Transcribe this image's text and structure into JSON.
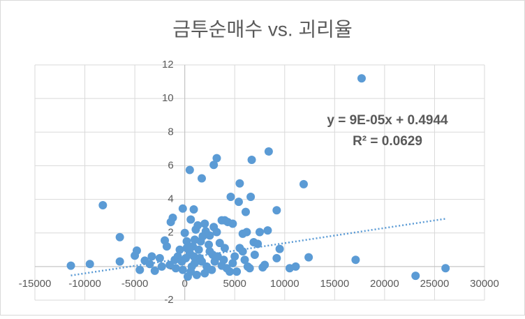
{
  "chart_data": {
    "type": "scatter",
    "title": "금투순매수 vs. 괴리율",
    "x": [
      17700,
      8400,
      3200,
      6700,
      2900,
      500,
      1700,
      5500,
      11900,
      4600,
      6600,
      5400,
      -8200,
      6100,
      9200,
      -200,
      900,
      -1200,
      600,
      4000,
      4300,
      3700,
      4800,
      -1400,
      2000,
      1300,
      2900,
      -6500,
      6200,
      5800,
      7500,
      8300,
      -2000,
      3200,
      2500,
      9500,
      6900,
      7300,
      12400,
      9200,
      17100,
      26100,
      23100,
      11100,
      10500,
      -11400,
      -9500,
      -6500,
      -4800,
      -4500,
      -5000,
      -3500,
      -4000,
      -3000,
      -2500,
      -1800,
      -1000,
      -500,
      0,
      200,
      500,
      800,
      1000,
      1500,
      2000,
      2500,
      3000,
      3500,
      4000,
      4500,
      5000,
      5500,
      6000,
      6500,
      7000,
      7800,
      8000,
      5200,
      3700,
      1200,
      -200,
      100,
      300,
      -1500,
      1800,
      2200,
      2700,
      700,
      -700,
      1400,
      3300,
      4200,
      600,
      -300,
      1700,
      2400,
      2800,
      -2300,
      4800,
      5800,
      6300,
      -3300,
      1100,
      1600,
      2100,
      200,
      900,
      -900,
      3900,
      1000
    ],
    "values": [
      11.2,
      6.85,
      6.45,
      6.35,
      6.05,
      5.75,
      5.25,
      4.95,
      4.9,
      4.15,
      4.15,
      3.85,
      3.65,
      3.25,
      3.35,
      3.45,
      3.4,
      2.9,
      2.8,
      2.75,
      2.65,
      2.75,
      2.55,
      2.65,
      2.55,
      2.45,
      2.35,
      1.75,
      2.05,
      1.95,
      2.05,
      2.15,
      1.55,
      2.05,
      1.85,
      1.05,
      1.45,
      1.35,
      0.55,
      0.5,
      0.4,
      -0.1,
      -0.55,
      0.0,
      -0.1,
      0.05,
      0.15,
      0.3,
      0.95,
      -0.2,
      0.65,
      0.15,
      0.35,
      -0.25,
      0.5,
      1.2,
      0.4,
      1.0,
      2.0,
      1.5,
      0.8,
      1.2,
      0.2,
      0.5,
      -0.4,
      0.9,
      0.3,
      1.4,
      1.1,
      -0.3,
      0.6,
      1.1,
      0.4,
      -0.1,
      0.7,
      -0.05,
      0.1,
      -0.3,
      0.05,
      -0.5,
      -0.2,
      0.5,
      -0.6,
      0.1,
      1.8,
      0.0,
      -0.2,
      0.0,
      0.6,
      1.0,
      0.6,
      -0.1,
      -0.3,
      0.3,
      0.3,
      1.3,
      0.7,
      0.0,
      0.2,
      0.9,
      0.0,
      0.6,
      2.2,
      1.5,
      2.1,
      1.1,
      0.6,
      -0.1,
      0.4,
      1.6
    ],
    "color": "#5b9bd5",
    "xlim": [
      -15000,
      30000
    ],
    "xticks": [
      -15000,
      -10000,
      -5000,
      0,
      5000,
      10000,
      15000,
      20000,
      25000,
      30000
    ],
    "ylim": [
      -2,
      12
    ],
    "yticks": [
      -2,
      0,
      2,
      4,
      6,
      8,
      10,
      12
    ],
    "grid": true,
    "trendline": {
      "slope": 9e-05,
      "intercept": 0.4944,
      "x": [
        -11400,
        26100
      ],
      "equation": "y = 9E-05x + 0.4944",
      "r_squared": "R² = 0.0629"
    }
  }
}
